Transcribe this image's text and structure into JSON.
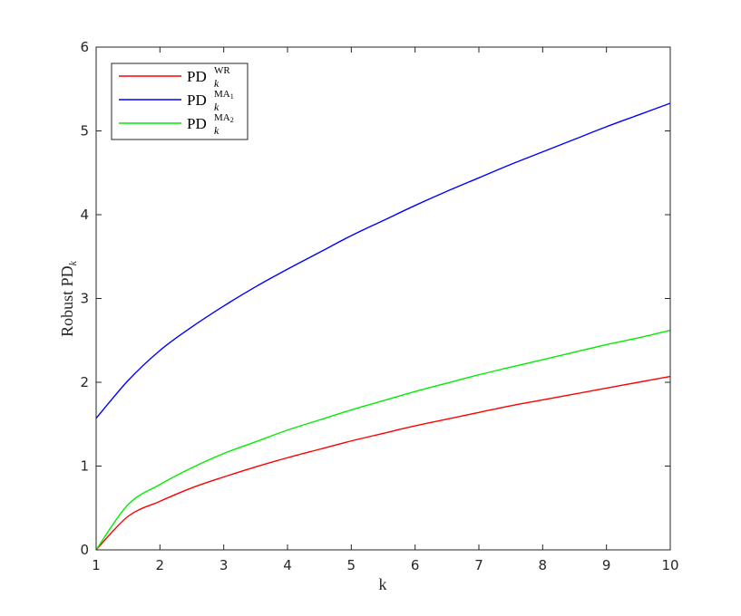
{
  "chart_data": {
    "type": "line",
    "xlabel": "k",
    "ylabel": "Robust PD",
    "ylabel_sub": "k",
    "xlim": [
      1,
      10
    ],
    "ylim": [
      0,
      6
    ],
    "xticks": [
      "1",
      "2",
      "3",
      "4",
      "5",
      "6",
      "7",
      "8",
      "9",
      "10"
    ],
    "yticks": [
      "0",
      "1",
      "2",
      "3",
      "4",
      "5",
      "6"
    ],
    "legend_position": "top-left",
    "grid": false,
    "series": [
      {
        "name": "PD",
        "name_sup": "WR",
        "name_sub_k": "k",
        "color": "#ff0000",
        "x": [
          1,
          1.5,
          2,
          2.5,
          3,
          3.5,
          4,
          4.5,
          5,
          5.5,
          6,
          6.5,
          7,
          7.5,
          8,
          8.5,
          9,
          9.5,
          10
        ],
        "y": [
          0,
          0.4,
          0.58,
          0.74,
          0.87,
          0.99,
          1.1,
          1.2,
          1.3,
          1.39,
          1.48,
          1.56,
          1.64,
          1.72,
          1.79,
          1.86,
          1.93,
          2.0,
          2.07
        ]
      },
      {
        "name": "PD",
        "name_sup": "MA",
        "name_sup_sub": "1",
        "name_sub_k": "k",
        "color": "#0000ff",
        "x": [
          1,
          1.5,
          2,
          2.5,
          3,
          3.5,
          4,
          4.5,
          5,
          5.5,
          6,
          6.5,
          7,
          7.5,
          8,
          8.5,
          9,
          9.5,
          10
        ],
        "y": [
          1.57,
          2.02,
          2.38,
          2.66,
          2.91,
          3.14,
          3.35,
          3.55,
          3.75,
          3.93,
          4.11,
          4.28,
          4.44,
          4.6,
          4.75,
          4.9,
          5.05,
          5.19,
          5.33
        ]
      },
      {
        "name": "PD",
        "name_sup": "MA",
        "name_sup_sub": "2",
        "name_sub_k": "k",
        "color": "#00ee00",
        "x": [
          1,
          1.5,
          2,
          2.5,
          3,
          3.5,
          4,
          4.5,
          5,
          5.5,
          6,
          6.5,
          7,
          7.5,
          8,
          8.5,
          9,
          9.5,
          10
        ],
        "y": [
          0,
          0.54,
          0.78,
          0.98,
          1.15,
          1.29,
          1.43,
          1.55,
          1.67,
          1.78,
          1.89,
          1.99,
          2.09,
          2.18,
          2.27,
          2.36,
          2.45,
          2.53,
          2.62
        ]
      }
    ]
  }
}
